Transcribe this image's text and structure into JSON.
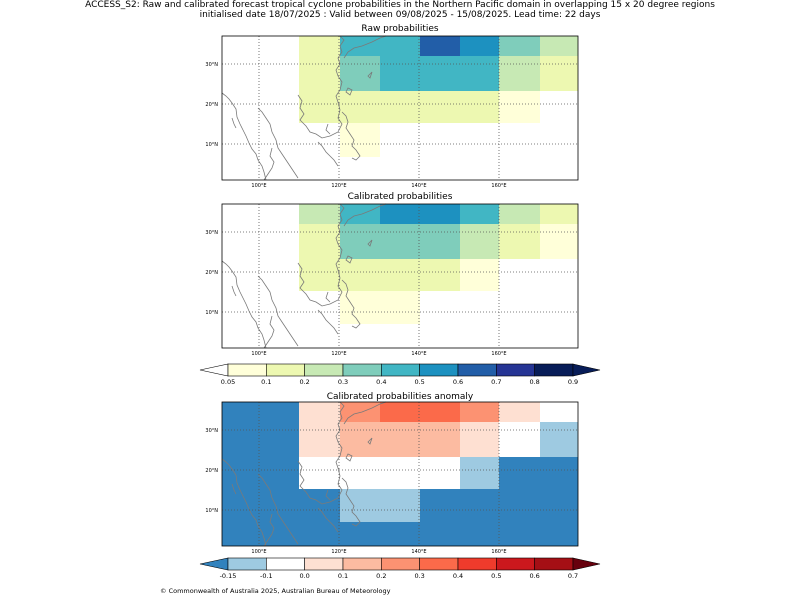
{
  "title_line1": "ACCESS_S2: Raw and calibrated forecast tropical cyclone probabilities in the Northern Pacific domain in overlapping 15 x 20 degree regions",
  "title_line2": "initialised date 18/07/2025 :  Valid between 09/08/2025 - 15/08/2025. Lead time: 22 days",
  "panels": [
    {
      "title": "Raw probabilities"
    },
    {
      "title": "Calibrated probabilities"
    },
    {
      "title": "Calibrated probabilities anomaly"
    }
  ],
  "lon_ticks": [
    "100°E",
    "120°E",
    "140°E",
    "160°E"
  ],
  "lat_ticks": [
    "30°N",
    "20°N",
    "10°N"
  ],
  "colorbar1": {
    "labels": [
      "0.05",
      "0.1",
      "0.2",
      "0.3",
      "0.4",
      "0.5",
      "0.6",
      "0.7",
      "0.8",
      "0.9"
    ],
    "colors": [
      "#ffffd9",
      "#edf8b1",
      "#c7e9b4",
      "#7fcdbb",
      "#41b6c4",
      "#1d91c0",
      "#225ea8",
      "#253494",
      "#081d58"
    ]
  },
  "colorbar2": {
    "labels": [
      "-0.15",
      "-0.1",
      "0.0",
      "0.1",
      "0.2",
      "0.3",
      "0.4",
      "0.5",
      "0.6",
      "0.7"
    ],
    "colors": [
      "#9ecae1",
      "#ffffff",
      "#fee0d2",
      "#fcbba1",
      "#fc9272",
      "#fb6a4a",
      "#ef3b2c",
      "#cb181d",
      "#a50f15"
    ],
    "under": "#3182bd",
    "over": "#67000d"
  },
  "copyright": "© Commonwealth of Australia 2025, Australian Bureau of Meteorology"
}
